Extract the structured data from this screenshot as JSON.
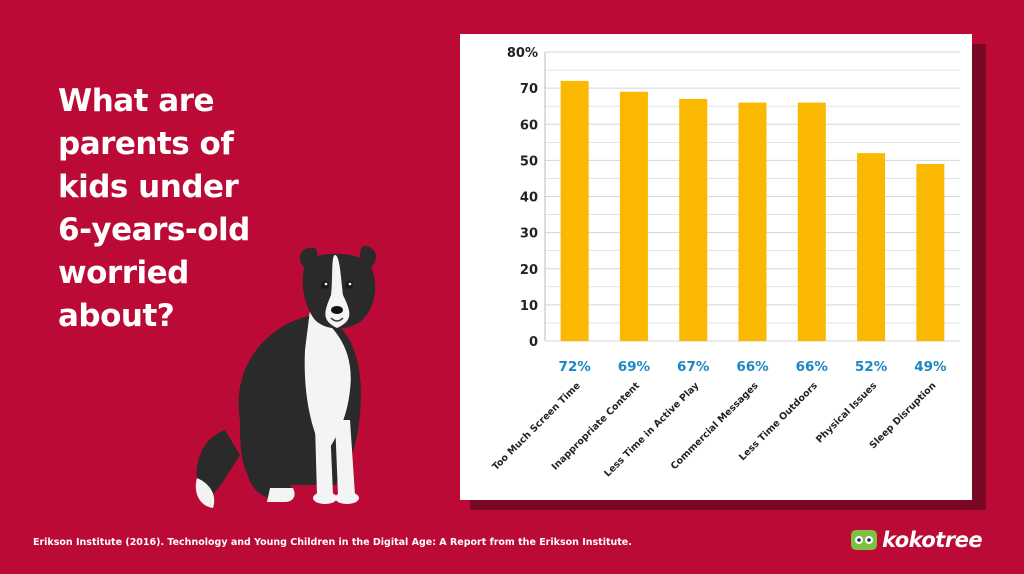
{
  "headline": "What  are\nparents of\nkids under\n6-years-old\nworried\nabout?",
  "footer": {
    "source": "Erikson Institute (2016). Technology and Young Children in the Digital Age: A Report from the Erikson Institute."
  },
  "logo": {
    "text": "kokotree",
    "icon": "koala-icon"
  },
  "colors": {
    "background": "#bb0a35",
    "bar": "#fbb800",
    "value_label": "#1b86c4",
    "grid": "#d5d5d5"
  },
  "chart_data": {
    "type": "bar",
    "categories": [
      "Too Much Screen Time",
      "Inappropriate Content",
      "Less Time in Active Play",
      "Commercial Messages",
      "Less Time Outdoors",
      "Physical Issues",
      "Sleep Disruption"
    ],
    "values": [
      72,
      69,
      67,
      66,
      66,
      52,
      49
    ],
    "value_labels": [
      "72%",
      "69%",
      "67%",
      "66%",
      "66%",
      "52%",
      "49%"
    ],
    "yticks": [
      "0",
      "10",
      "20",
      "30",
      "40",
      "50",
      "60",
      "70",
      "80%"
    ],
    "ylim": [
      0,
      80
    ],
    "grid": true
  }
}
